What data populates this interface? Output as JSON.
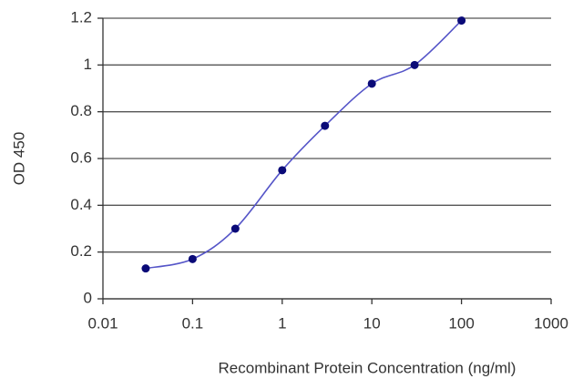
{
  "chart_data": {
    "type": "line",
    "x_label": "Recombinant Protein Concentration (ng/ml)",
    "y_label": "OD 450",
    "x": [
      0.03,
      0.1,
      0.3,
      1,
      3,
      10,
      30,
      100
    ],
    "series": [
      {
        "color": "#5555c8",
        "marker_color": "#0a0a78",
        "values": [
          0.13,
          0.17,
          0.3,
          0.55,
          0.74,
          0.92,
          1.0,
          1.19
        ]
      }
    ],
    "xscale": "log",
    "xlim": [
      0.01,
      1000
    ],
    "xticks": [
      0.01,
      0.1,
      1,
      10,
      100,
      1000
    ],
    "ylim": [
      0,
      1.2
    ],
    "yticks": [
      0,
      0.2,
      0.4,
      0.6,
      0.8,
      1,
      1.2
    ],
    "grid": true
  }
}
